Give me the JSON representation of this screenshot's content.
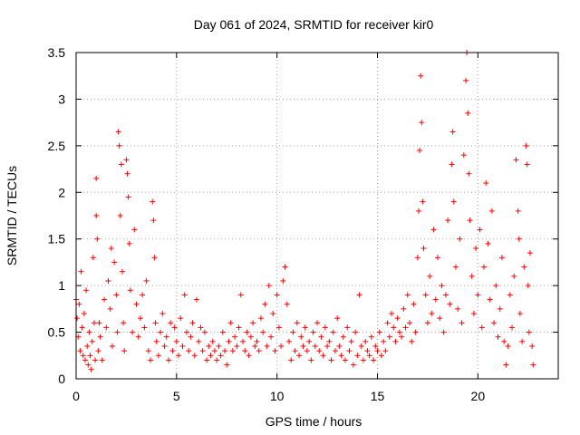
{
  "chart_data": {
    "type": "scatter",
    "title": "Day 061 of 2024, SRMTID for receiver kir0",
    "xlabel": "GPS time / hours",
    "ylabel": "SRMTID / TECUs",
    "xlim": [
      0,
      24
    ],
    "ylim": [
      0,
      3.5
    ],
    "grid": true,
    "marker": "+",
    "color": "#ff0000",
    "x_ticks": [
      0,
      5,
      10,
      15,
      20
    ],
    "x_tick_labels": [
      "0",
      "5",
      "10",
      "15",
      "20"
    ],
    "y_ticks": [
      0,
      0.5,
      1,
      1.5,
      2,
      2.5,
      3,
      3.5
    ],
    "y_tick_labels": [
      "0",
      "0.5",
      "1",
      "1.5",
      "2",
      "2.5",
      "3",
      "3.5"
    ],
    "series": [
      {
        "name": "SRMTID",
        "points": [
          [
            0.0,
            0.85
          ],
          [
            0.05,
            0.65
          ],
          [
            0.1,
            0.45
          ],
          [
            0.15,
            0.8
          ],
          [
            0.2,
            0.3
          ],
          [
            0.25,
            1.15
          ],
          [
            0.3,
            0.55
          ],
          [
            0.35,
            0.25
          ],
          [
            0.4,
            0.7
          ],
          [
            0.45,
            0.2
          ],
          [
            0.5,
            0.95
          ],
          [
            0.55,
            0.35
          ],
          [
            0.6,
            0.15
          ],
          [
            0.65,
            0.5
          ],
          [
            0.7,
            0.25
          ],
          [
            0.75,
            0.1
          ],
          [
            0.8,
            0.4
          ],
          [
            0.85,
            1.3
          ],
          [
            0.9,
            0.6
          ],
          [
            0.95,
            0.2
          ],
          [
            1.0,
            2.15
          ],
          [
            1.0,
            1.75
          ],
          [
            1.05,
            1.5
          ],
          [
            1.1,
            0.3
          ],
          [
            1.15,
            0.6
          ],
          [
            1.2,
            0.45
          ],
          [
            1.3,
            0.2
          ],
          [
            1.4,
            0.85
          ],
          [
            1.5,
            0.55
          ],
          [
            1.6,
            1.05
          ],
          [
            1.7,
            0.75
          ],
          [
            1.75,
            1.4
          ],
          [
            1.8,
            0.35
          ],
          [
            1.9,
            1.25
          ],
          [
            2.0,
            0.9
          ],
          [
            2.05,
            0.5
          ],
          [
            2.1,
            2.65
          ],
          [
            2.15,
            2.5
          ],
          [
            2.2,
            1.75
          ],
          [
            2.25,
            2.3
          ],
          [
            2.3,
            1.15
          ],
          [
            2.35,
            0.6
          ],
          [
            2.4,
            0.3
          ],
          [
            2.5,
            2.35
          ],
          [
            2.55,
            2.2
          ],
          [
            2.6,
            1.95
          ],
          [
            2.65,
            1.45
          ],
          [
            2.7,
            0.95
          ],
          [
            2.8,
            0.5
          ],
          [
            2.9,
            1.6
          ],
          [
            3.0,
            0.8
          ],
          [
            3.1,
            0.45
          ],
          [
            3.2,
            0.65
          ],
          [
            3.3,
            0.9
          ],
          [
            3.4,
            0.55
          ],
          [
            3.5,
            1.05
          ],
          [
            3.6,
            0.3
          ],
          [
            3.7,
            0.2
          ],
          [
            3.8,
            1.9
          ],
          [
            3.85,
            1.7
          ],
          [
            3.9,
            1.3
          ],
          [
            3.95,
            0.6
          ],
          [
            4.0,
            0.4
          ],
          [
            4.1,
            0.25
          ],
          [
            4.2,
            0.5
          ],
          [
            4.3,
            0.7
          ],
          [
            4.4,
            0.35
          ],
          [
            4.5,
            0.45
          ],
          [
            4.6,
            0.2
          ],
          [
            4.7,
            0.6
          ],
          [
            4.8,
            0.3
          ],
          [
            4.9,
            0.55
          ],
          [
            5.0,
            0.4
          ],
          [
            5.1,
            0.25
          ],
          [
            5.2,
            0.65
          ],
          [
            5.3,
            0.35
          ],
          [
            5.4,
            0.9
          ],
          [
            5.5,
            0.5
          ],
          [
            5.6,
            0.3
          ],
          [
            5.7,
            0.45
          ],
          [
            5.8,
            0.6
          ],
          [
            5.9,
            0.25
          ],
          [
            6.0,
            0.85
          ],
          [
            6.1,
            0.4
          ],
          [
            6.2,
            0.55
          ],
          [
            6.3,
            0.3
          ],
          [
            6.4,
            0.5
          ],
          [
            6.5,
            0.2
          ],
          [
            6.6,
            0.35
          ],
          [
            6.7,
            0.25
          ],
          [
            6.8,
            0.4
          ],
          [
            6.9,
            0.3
          ],
          [
            7.0,
            0.2
          ],
          [
            7.1,
            0.35
          ],
          [
            7.2,
            0.25
          ],
          [
            7.3,
            0.5
          ],
          [
            7.4,
            0.3
          ],
          [
            7.5,
            0.15
          ],
          [
            7.6,
            0.4
          ],
          [
            7.7,
            0.6
          ],
          [
            7.8,
            0.3
          ],
          [
            7.9,
            0.45
          ],
          [
            8.0,
            0.35
          ],
          [
            8.1,
            0.55
          ],
          [
            8.2,
            0.9
          ],
          [
            8.3,
            0.4
          ],
          [
            8.4,
            0.3
          ],
          [
            8.5,
            0.5
          ],
          [
            8.6,
            0.25
          ],
          [
            8.7,
            0.45
          ],
          [
            8.8,
            0.6
          ],
          [
            8.9,
            0.35
          ],
          [
            9.0,
            0.4
          ],
          [
            9.1,
            0.3
          ],
          [
            9.2,
            0.65
          ],
          [
            9.3,
            0.5
          ],
          [
            9.4,
            0.8
          ],
          [
            9.5,
            0.35
          ],
          [
            9.6,
            1.0
          ],
          [
            9.7,
            0.45
          ],
          [
            9.8,
            0.7
          ],
          [
            9.9,
            0.3
          ],
          [
            10.0,
            0.9
          ],
          [
            10.1,
            0.55
          ],
          [
            10.2,
            0.35
          ],
          [
            10.3,
            1.05
          ],
          [
            10.4,
            1.2
          ],
          [
            10.5,
            0.8
          ],
          [
            10.6,
            0.4
          ],
          [
            10.7,
            0.2
          ],
          [
            10.8,
            0.5
          ],
          [
            10.9,
            0.3
          ],
          [
            11.0,
            0.6
          ],
          [
            11.1,
            0.25
          ],
          [
            11.2,
            0.45
          ],
          [
            11.3,
            0.35
          ],
          [
            11.4,
            0.55
          ],
          [
            11.5,
            0.3
          ],
          [
            11.6,
            0.4
          ],
          [
            11.7,
            0.2
          ],
          [
            11.8,
            0.5
          ],
          [
            11.9,
            0.35
          ],
          [
            12.0,
            0.6
          ],
          [
            12.1,
            0.3
          ],
          [
            12.2,
            0.45
          ],
          [
            12.3,
            0.25
          ],
          [
            12.4,
            0.55
          ],
          [
            12.5,
            0.35
          ],
          [
            12.6,
            0.4
          ],
          [
            12.7,
            0.2
          ],
          [
            12.8,
            0.5
          ],
          [
            12.9,
            0.3
          ],
          [
            13.0,
            0.65
          ],
          [
            13.1,
            0.35
          ],
          [
            13.2,
            0.25
          ],
          [
            13.3,
            0.45
          ],
          [
            13.4,
            0.2
          ],
          [
            13.5,
            0.55
          ],
          [
            13.6,
            0.3
          ],
          [
            13.7,
            0.4
          ],
          [
            13.8,
            0.15
          ],
          [
            13.9,
            0.5
          ],
          [
            14.0,
            0.25
          ],
          [
            14.1,
            0.9
          ],
          [
            14.2,
            0.35
          ],
          [
            14.3,
            0.2
          ],
          [
            14.4,
            0.4
          ],
          [
            14.5,
            0.3
          ],
          [
            14.6,
            0.25
          ],
          [
            14.7,
            0.45
          ],
          [
            14.8,
            0.2
          ],
          [
            14.9,
            0.35
          ],
          [
            15.0,
            0.3
          ],
          [
            15.1,
            0.5
          ],
          [
            15.2,
            0.25
          ],
          [
            15.3,
            0.4
          ],
          [
            15.4,
            0.3
          ],
          [
            15.5,
            0.6
          ],
          [
            15.6,
            0.45
          ],
          [
            15.7,
            0.7
          ],
          [
            15.8,
            0.55
          ],
          [
            15.9,
            0.4
          ],
          [
            16.0,
            0.65
          ],
          [
            16.1,
            0.5
          ],
          [
            16.2,
            0.45
          ],
          [
            16.3,
            0.75
          ],
          [
            16.4,
            0.55
          ],
          [
            16.5,
            0.9
          ],
          [
            16.6,
            0.6
          ],
          [
            16.7,
            0.4
          ],
          [
            16.8,
            0.8
          ],
          [
            16.9,
            0.5
          ],
          [
            17.0,
            1.3
          ],
          [
            17.05,
            1.8
          ],
          [
            17.1,
            2.45
          ],
          [
            17.15,
            3.25
          ],
          [
            17.2,
            2.75
          ],
          [
            17.25,
            1.9
          ],
          [
            17.3,
            1.4
          ],
          [
            17.4,
            0.9
          ],
          [
            17.5,
            0.6
          ],
          [
            17.6,
            1.1
          ],
          [
            17.7,
            0.7
          ],
          [
            17.8,
            1.6
          ],
          [
            17.9,
            0.85
          ],
          [
            18.0,
            1.3
          ],
          [
            18.1,
            0.65
          ],
          [
            18.2,
            1.0
          ],
          [
            18.3,
            0.5
          ],
          [
            18.4,
            0.9
          ],
          [
            18.5,
            1.7
          ],
          [
            18.6,
            0.8
          ],
          [
            18.7,
            2.3
          ],
          [
            18.75,
            2.65
          ],
          [
            18.8,
            1.9
          ],
          [
            18.9,
            1.2
          ],
          [
            19.0,
            0.75
          ],
          [
            19.1,
            1.5
          ],
          [
            19.2,
            0.6
          ],
          [
            19.3,
            2.4
          ],
          [
            19.4,
            3.2
          ],
          [
            19.45,
            3.5
          ],
          [
            19.5,
            2.85
          ],
          [
            19.55,
            2.2
          ],
          [
            19.6,
            1.7
          ],
          [
            19.7,
            1.1
          ],
          [
            19.8,
            0.7
          ],
          [
            19.9,
            1.4
          ],
          [
            20.0,
            0.9
          ],
          [
            20.1,
            1.6
          ],
          [
            20.2,
            0.55
          ],
          [
            20.3,
            1.2
          ],
          [
            20.4,
            2.1
          ],
          [
            20.5,
            1.45
          ],
          [
            20.6,
            0.85
          ],
          [
            20.7,
            1.8
          ],
          [
            20.8,
            0.6
          ],
          [
            20.9,
            1.0
          ],
          [
            21.0,
            0.45
          ],
          [
            21.1,
            0.75
          ],
          [
            21.2,
            1.3
          ],
          [
            21.3,
            0.4
          ],
          [
            21.4,
            0.15
          ],
          [
            21.5,
            0.35
          ],
          [
            21.6,
            0.9
          ],
          [
            21.7,
            0.55
          ],
          [
            21.8,
            1.1
          ],
          [
            21.9,
            2.35
          ],
          [
            22.0,
            1.8
          ],
          [
            22.05,
            1.5
          ],
          [
            22.1,
            0.7
          ],
          [
            22.2,
            0.4
          ],
          [
            22.3,
            1.2
          ],
          [
            22.4,
            2.5
          ],
          [
            22.45,
            2.3
          ],
          [
            22.5,
            1.0
          ],
          [
            22.55,
            0.5
          ],
          [
            22.6,
            1.35
          ],
          [
            22.7,
            0.35
          ],
          [
            22.75,
            0.15
          ]
        ]
      }
    ]
  }
}
